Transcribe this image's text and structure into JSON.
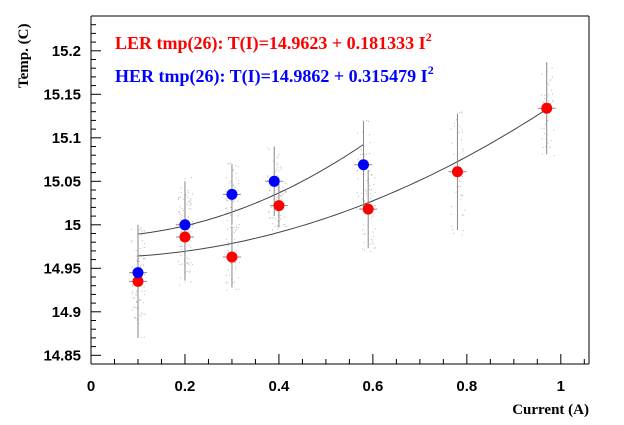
{
  "chart_data": {
    "type": "scatter",
    "title": "",
    "xlabel": "Current (A)",
    "ylabel": "Temp. (C)",
    "xlim": [
      0,
      1.06
    ],
    "ylim": [
      14.84,
      15.24
    ],
    "x_ticks": [
      "0",
      "0.2",
      "0.4",
      "0.6",
      "0.8",
      "1"
    ],
    "y_ticks": [
      "14.85",
      "14.9",
      "14.95",
      "15",
      "15.05",
      "15.1",
      "15.15",
      "15.2"
    ],
    "grid": false,
    "series": [
      {
        "name": "LER tmp(26)",
        "color": "#ff0000",
        "points": [
          {
            "x": 0.1,
            "y": 14.935,
            "err": 0.065
          },
          {
            "x": 0.2,
            "y": 14.986,
            "err": 0.05
          },
          {
            "x": 0.3,
            "y": 14.963,
            "err": 0.035
          },
          {
            "x": 0.4,
            "y": 15.022,
            "err": 0.025
          },
          {
            "x": 0.59,
            "y": 15.018,
            "err": 0.045
          },
          {
            "x": 0.78,
            "y": 15.061,
            "err": 0.067
          },
          {
            "x": 0.97,
            "y": 15.134,
            "err": 0.053
          }
        ],
        "fit": {
          "a": 14.9623,
          "b": 0.181333,
          "x_range": [
            0.1,
            0.97
          ]
        },
        "equation": {
          "prefix": "LER tmp(26): T(I)=14.9623 + 0.181333 I",
          "exponent": "2"
        }
      },
      {
        "name": "HER tmp(26)",
        "color": "#0000ff",
        "points": [
          {
            "x": 0.1,
            "y": 14.945,
            "err": 0.05
          },
          {
            "x": 0.2,
            "y": 15.0,
            "err": 0.05
          },
          {
            "x": 0.3,
            "y": 15.035,
            "err": 0.035
          },
          {
            "x": 0.39,
            "y": 15.05,
            "err": 0.04
          },
          {
            "x": 0.58,
            "y": 15.069,
            "err": 0.05
          }
        ],
        "fit": {
          "a": 14.9862,
          "b": 0.315479,
          "x_range": [
            0.1,
            0.58
          ]
        },
        "equation": {
          "prefix": "HER tmp(26): T(I)=14.9862 + 0.315479 I",
          "exponent": "2"
        }
      }
    ]
  }
}
